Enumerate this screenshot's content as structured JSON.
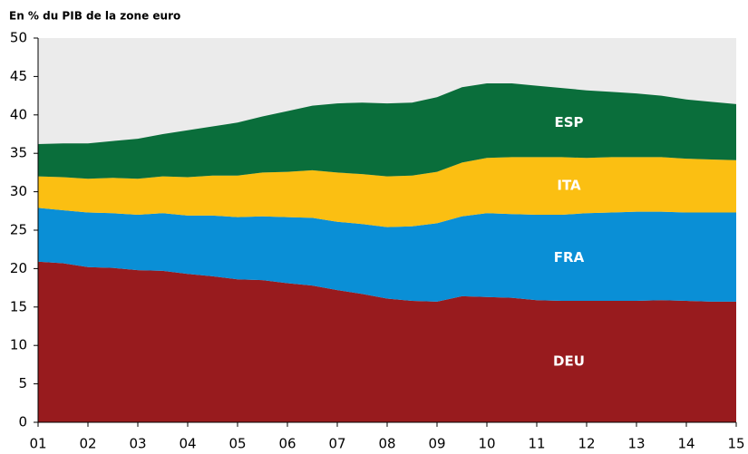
{
  "chart_data": {
    "type": "stacked-area",
    "title": "En % du PIB de la zone euro",
    "x": [
      2001,
      2001.5,
      2002,
      2002.5,
      2003,
      2003.5,
      2004,
      2004.5,
      2005,
      2005.5,
      2006,
      2006.5,
      2007,
      2007.5,
      2008,
      2008.5,
      2009,
      2009.5,
      2010,
      2010.5,
      2011,
      2011.5,
      2012,
      2012.5,
      2013,
      2013.5,
      2014,
      2014.5,
      2015
    ],
    "series": [
      {
        "name": "DEU",
        "color": "#981b1e",
        "values": [
          20.9,
          20.7,
          20.2,
          20.1,
          19.8,
          19.7,
          19.3,
          19.0,
          18.6,
          18.5,
          18.1,
          17.8,
          17.2,
          16.7,
          16.1,
          15.8,
          15.7,
          16.4,
          16.3,
          16.2,
          15.9,
          15.8,
          15.8,
          15.8,
          15.8,
          15.9,
          15.8,
          15.7,
          15.7
        ]
      },
      {
        "name": "FRA",
        "color": "#0a8fd6",
        "values": [
          7.0,
          6.9,
          7.1,
          7.1,
          7.2,
          7.5,
          7.6,
          7.9,
          8.1,
          8.3,
          8.6,
          8.8,
          8.9,
          9.1,
          9.3,
          9.7,
          10.2,
          10.4,
          10.9,
          10.9,
          11.1,
          11.2,
          11.4,
          11.5,
          11.6,
          11.5,
          11.5,
          11.6,
          11.6
        ]
      },
      {
        "name": "ITA",
        "color": "#fbbf12",
        "values": [
          4.1,
          4.3,
          4.4,
          4.6,
          4.7,
          4.8,
          5.0,
          5.2,
          5.4,
          5.7,
          5.9,
          6.2,
          6.4,
          6.5,
          6.6,
          6.6,
          6.7,
          7.0,
          7.2,
          7.4,
          7.5,
          7.5,
          7.2,
          7.2,
          7.1,
          7.1,
          7.0,
          6.9,
          6.8
        ]
      },
      {
        "name": "ESP",
        "color": "#0a6e3b",
        "values": [
          4.2,
          4.4,
          4.6,
          4.8,
          5.2,
          5.5,
          6.1,
          6.4,
          6.9,
          7.3,
          7.9,
          8.4,
          9.0,
          9.3,
          9.5,
          9.5,
          9.7,
          9.8,
          9.7,
          9.6,
          9.3,
          9.0,
          8.8,
          8.5,
          8.3,
          8.0,
          7.7,
          7.5,
          7.3
        ]
      }
    ],
    "xlim": [
      2001,
      2015
    ],
    "xticks": [
      {
        "value": 2001,
        "label": "01"
      },
      {
        "value": 2002,
        "label": "02"
      },
      {
        "value": 2003,
        "label": "03"
      },
      {
        "value": 2004,
        "label": "04"
      },
      {
        "value": 2005,
        "label": "05"
      },
      {
        "value": 2006,
        "label": "06"
      },
      {
        "value": 2007,
        "label": "07"
      },
      {
        "value": 2008,
        "label": "08"
      },
      {
        "value": 2009,
        "label": "09"
      },
      {
        "value": 2010,
        "label": "10"
      },
      {
        "value": 2011,
        "label": "11"
      },
      {
        "value": 2012,
        "label": "12"
      },
      {
        "value": 2013,
        "label": "13"
      },
      {
        "value": 2014,
        "label": "14"
      },
      {
        "value": 2015,
        "label": "15"
      }
    ],
    "ylim": [
      0,
      50
    ],
    "yticks": [
      0,
      5,
      10,
      15,
      20,
      25,
      30,
      35,
      40,
      45,
      50
    ],
    "grid": false
  }
}
